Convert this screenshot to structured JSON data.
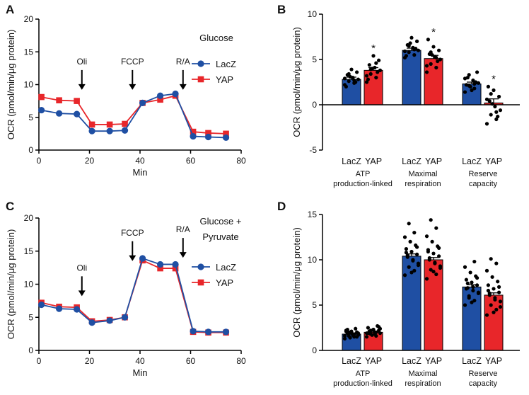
{
  "chart_data": [
    {
      "panel": "A",
      "type": "line",
      "annotation": "Glucose",
      "xlabel": "Min",
      "ylabel": "OCR (pmol/min/μg protein)",
      "xlim": [
        0,
        80
      ],
      "ylim": [
        0,
        20
      ],
      "xticks": [
        0,
        20,
        40,
        60,
        80
      ],
      "yticks": [
        0,
        5,
        10,
        15,
        20
      ],
      "x": [
        1,
        8,
        15,
        21,
        28,
        34,
        41,
        48,
        54,
        61,
        67,
        74
      ],
      "series": [
        {
          "name": "LacZ",
          "color": "#1f4fa3",
          "marker": "circle",
          "values": [
            6.1,
            5.6,
            5.5,
            2.9,
            2.9,
            3.0,
            7.2,
            8.3,
            8.6,
            2.1,
            2.0,
            1.9
          ]
        },
        {
          "name": "YAP",
          "color": "#e8262a",
          "marker": "square",
          "values": [
            8.1,
            7.6,
            7.5,
            3.9,
            3.9,
            4.0,
            7.2,
            7.7,
            8.3,
            2.8,
            2.6,
            2.5
          ]
        }
      ],
      "injections": [
        {
          "label": "Oli",
          "x": 17,
          "y": 9.2
        },
        {
          "label": "FCCP",
          "x": 37,
          "y": 9.2
        },
        {
          "label": "R/A",
          "x": 57,
          "y": 9.2
        }
      ]
    },
    {
      "panel": "B",
      "type": "bar",
      "ylabel": "OCR (pmol/min/μg protein)",
      "ylim": [
        -5,
        10
      ],
      "yticks": [
        -5,
        0,
        5,
        10
      ],
      "groups": [
        {
          "label_lines": [
            "ATP",
            "production-linked"
          ],
          "bars": [
            {
              "name": "LacZ",
              "value": 2.8,
              "sem": 0.25,
              "sig": "",
              "points": [
                2.2,
                2.4,
                2.6,
                2.8,
                3.0,
                3.3,
                3.6,
                3.9,
                2.0,
                2.5,
                3.1,
                2.9,
                2.7,
                3.4
              ]
            },
            {
              "name": "YAP",
              "value": 3.8,
              "sem": 0.3,
              "sig": "*",
              "points": [
                2.5,
                3.0,
                3.4,
                3.8,
                4.1,
                4.4,
                4.9,
                5.4,
                2.8,
                3.6,
                4.0,
                3.2,
                4.6,
                3.9
              ]
            }
          ]
        },
        {
          "label_lines": [
            "Maximal",
            "respiration"
          ],
          "bars": [
            {
              "name": "LacZ",
              "value": 6.0,
              "sem": 0.25,
              "sig": "",
              "points": [
                5.2,
                5.5,
                5.8,
                6.0,
                6.3,
                6.6,
                7.0,
                7.4,
                5.4,
                6.2,
                6.8,
                5.9,
                6.1,
                6.5
              ]
            },
            {
              "name": "YAP",
              "value": 5.1,
              "sem": 0.35,
              "sig": "*",
              "points": [
                3.6,
                4.1,
                4.5,
                5.0,
                5.3,
                5.6,
                6.0,
                6.4,
                7.2,
                4.8,
                5.5,
                4.3,
                5.2,
                5.8
              ]
            }
          ]
        },
        {
          "label_lines": [
            "Reserve",
            "capacity"
          ],
          "bars": [
            {
              "name": "LacZ",
              "value": 2.3,
              "sem": 0.2,
              "sig": "",
              "points": [
                1.4,
                1.8,
                2.1,
                2.4,
                2.7,
                3.0,
                3.6,
                1.6,
                2.2,
                2.5,
                2.0,
                2.9,
                2.3,
                3.3
              ]
            },
            {
              "name": "YAP",
              "value": 0.2,
              "sem": 0.45,
              "sig": "*",
              "points": [
                -2.1,
                -1.6,
                -1.1,
                -0.6,
                -0.2,
                0.4,
                0.9,
                1.6,
                2.0,
                -1.3,
                0.1,
                0.6,
                -0.8,
                1.2
              ]
            }
          ]
        }
      ]
    },
    {
      "panel": "C",
      "type": "line",
      "annotation": "Glucose + Pyruvate",
      "xlabel": "Min",
      "ylabel": "OCR (pmol/min/μg protein)",
      "xlim": [
        0,
        80
      ],
      "ylim": [
        0,
        20
      ],
      "xticks": [
        0,
        20,
        40,
        60,
        80
      ],
      "yticks": [
        0,
        5,
        10,
        15,
        20
      ],
      "x": [
        1,
        8,
        15,
        21,
        28,
        34,
        41,
        48,
        54,
        61,
        67,
        74
      ],
      "series": [
        {
          "name": "LacZ",
          "color": "#1f4fa3",
          "marker": "circle",
          "values": [
            6.9,
            6.3,
            6.2,
            4.2,
            4.5,
            5.0,
            13.9,
            13.0,
            13.0,
            2.9,
            2.8,
            2.8
          ]
        },
        {
          "name": "YAP",
          "color": "#e8262a",
          "marker": "square",
          "values": [
            7.2,
            6.6,
            6.5,
            4.4,
            4.6,
            5.0,
            13.6,
            12.4,
            12.4,
            2.8,
            2.7,
            2.7
          ]
        }
      ],
      "injections": [
        {
          "label": "Oli",
          "x": 17,
          "y": 8.2
        },
        {
          "label": "FCCP",
          "x": 37,
          "y": 13.5
        },
        {
          "label": "R/A",
          "x": 57,
          "y": 14.0
        }
      ]
    },
    {
      "panel": "D",
      "type": "bar",
      "ylabel": "OCR (pmol/min/μg protein)",
      "ylim": [
        0,
        15
      ],
      "yticks": [
        0,
        5,
        10,
        15
      ],
      "groups": [
        {
          "label_lines": [
            "ATP",
            "production-linked"
          ],
          "bars": [
            {
              "name": "LacZ",
              "value": 1.8,
              "sem": 0.1,
              "sig": "",
              "points": [
                1.3,
                1.5,
                1.6,
                1.7,
                1.8,
                1.9,
                2.0,
                2.1,
                2.2,
                2.4,
                1.4,
                1.6,
                1.8,
                2.0,
                1.9,
                1.7,
                2.3,
                1.5,
                1.9,
                2.1
              ]
            },
            {
              "name": "YAP",
              "value": 2.0,
              "sem": 0.1,
              "sig": "",
              "points": [
                1.5,
                1.6,
                1.8,
                1.9,
                2.0,
                2.1,
                2.2,
                2.3,
                2.5,
                2.7,
                1.7,
                1.9,
                2.0,
                2.2,
                2.4,
                1.8,
                2.1,
                2.6,
                2.3,
                1.9
              ]
            }
          ]
        },
        {
          "label_lines": [
            "Maximal",
            "respiration"
          ],
          "bars": [
            {
              "name": "LacZ",
              "value": 10.4,
              "sem": 0.25,
              "sig": "",
              "points": [
                8.3,
                8.8,
                9.2,
                9.6,
                10.0,
                10.3,
                10.6,
                10.9,
                11.2,
                11.6,
                12.0,
                12.5,
                13.0,
                14.0,
                9.4,
                9.9,
                10.5,
                11.4,
                8.6,
                10.8
              ]
            },
            {
              "name": "YAP",
              "value": 10.0,
              "sem": 0.25,
              "sig": "",
              "points": [
                7.9,
                8.4,
                8.9,
                9.3,
                9.7,
                10.0,
                10.4,
                10.7,
                11.1,
                11.5,
                12.0,
                12.6,
                13.5,
                14.4,
                9.1,
                9.6,
                10.2,
                11.3,
                8.7,
                10.9
              ]
            }
          ]
        },
        {
          "label_lines": [
            "Reserve",
            "capacity"
          ],
          "bars": [
            {
              "name": "LacZ",
              "value": 7.0,
              "sem": 0.25,
              "sig": "",
              "points": [
                5.0,
                5.5,
                6.0,
                6.3,
                6.6,
                6.9,
                7.2,
                7.5,
                7.8,
                8.2,
                8.6,
                9.2,
                9.8,
                5.8,
                6.4,
                7.0,
                7.4,
                8.0,
                5.3,
                6.8
              ]
            },
            {
              "name": "YAP",
              "value": 6.1,
              "sem": 0.25,
              "sig": "",
              "points": [
                3.9,
                4.5,
                5.0,
                5.4,
                5.8,
                6.1,
                6.4,
                6.8,
                7.2,
                7.6,
                8.1,
                8.8,
                9.6,
                10.1,
                4.8,
                5.6,
                6.3,
                7.0,
                4.2,
                6.6
              ]
            }
          ]
        }
      ]
    }
  ]
}
